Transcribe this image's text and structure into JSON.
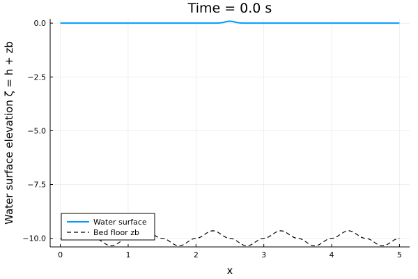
{
  "chart_data": {
    "type": "line",
    "title": "Time = 0.0 s",
    "xlabel": "x",
    "ylabel": "Water surface elevation ζ = h + zb",
    "xlim": [
      -0.15,
      5.15
    ],
    "ylim": [
      -10.4,
      0.2
    ],
    "xticks": [
      0,
      1,
      2,
      3,
      4,
      5
    ],
    "xtick_labels": [
      "0",
      "1",
      "2",
      "3",
      "4",
      "5"
    ],
    "yticks": [
      0.0,
      -2.5,
      -5.0,
      -7.5,
      -10.0
    ],
    "ytick_labels": [
      "0.0",
      "−2.5",
      "−5.0",
      "−7.5",
      "−10.0"
    ],
    "grid": true,
    "legend_position": "bottom-left",
    "series": [
      {
        "name": "Water surface",
        "color": "#009AFA",
        "style": "solid",
        "x": [
          0.0,
          2.3,
          2.35,
          2.4,
          2.45,
          2.5,
          2.55,
          2.6,
          2.65,
          2.7,
          5.0
        ],
        "y": [
          0.0,
          0.0,
          0.008,
          0.03,
          0.07,
          0.09,
          0.07,
          0.03,
          0.008,
          0.0,
          0.0
        ]
      },
      {
        "name": "Bed floor zb",
        "color": "#000000",
        "style": "dashed",
        "x": [
          0.0,
          0.25,
          0.5,
          0.75,
          1.0,
          1.25,
          1.5,
          1.75,
          2.0,
          2.25,
          2.5,
          2.75,
          3.0,
          3.25,
          3.5,
          3.75,
          4.0,
          4.25,
          4.5,
          4.75,
          5.0
        ],
        "y": [
          -10.0,
          -9.65,
          -10.0,
          -10.35,
          -10.0,
          -9.65,
          -10.0,
          -10.35,
          -10.0,
          -9.65,
          -10.0,
          -10.35,
          -10.0,
          -9.65,
          -10.0,
          -10.35,
          -10.0,
          -9.65,
          -10.0,
          -10.35,
          -10.0
        ]
      }
    ]
  }
}
